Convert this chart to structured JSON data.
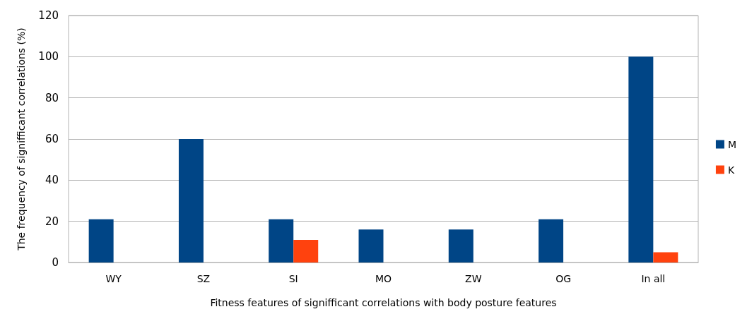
{
  "chart_data": {
    "type": "bar",
    "xlabel": "Fitness features of signifficant correlations with body posture features",
    "ylabel": "The frequency of signifficant correlations (%)",
    "categories": [
      "WY",
      "SZ",
      "SI",
      "MO",
      "ZW",
      "OG",
      "In all"
    ],
    "series": [
      {
        "name": "M",
        "color": "#004586",
        "values": [
          21,
          60,
          21,
          16,
          16,
          21,
          100
        ]
      },
      {
        "name": "K",
        "color": "#ff420e",
        "values": [
          null,
          null,
          11,
          null,
          null,
          null,
          5
        ]
      }
    ],
    "ylim": [
      0,
      120
    ],
    "yticks": [
      0,
      20,
      40,
      60,
      80,
      100,
      120
    ],
    "grid": "y",
    "legend": "right"
  }
}
